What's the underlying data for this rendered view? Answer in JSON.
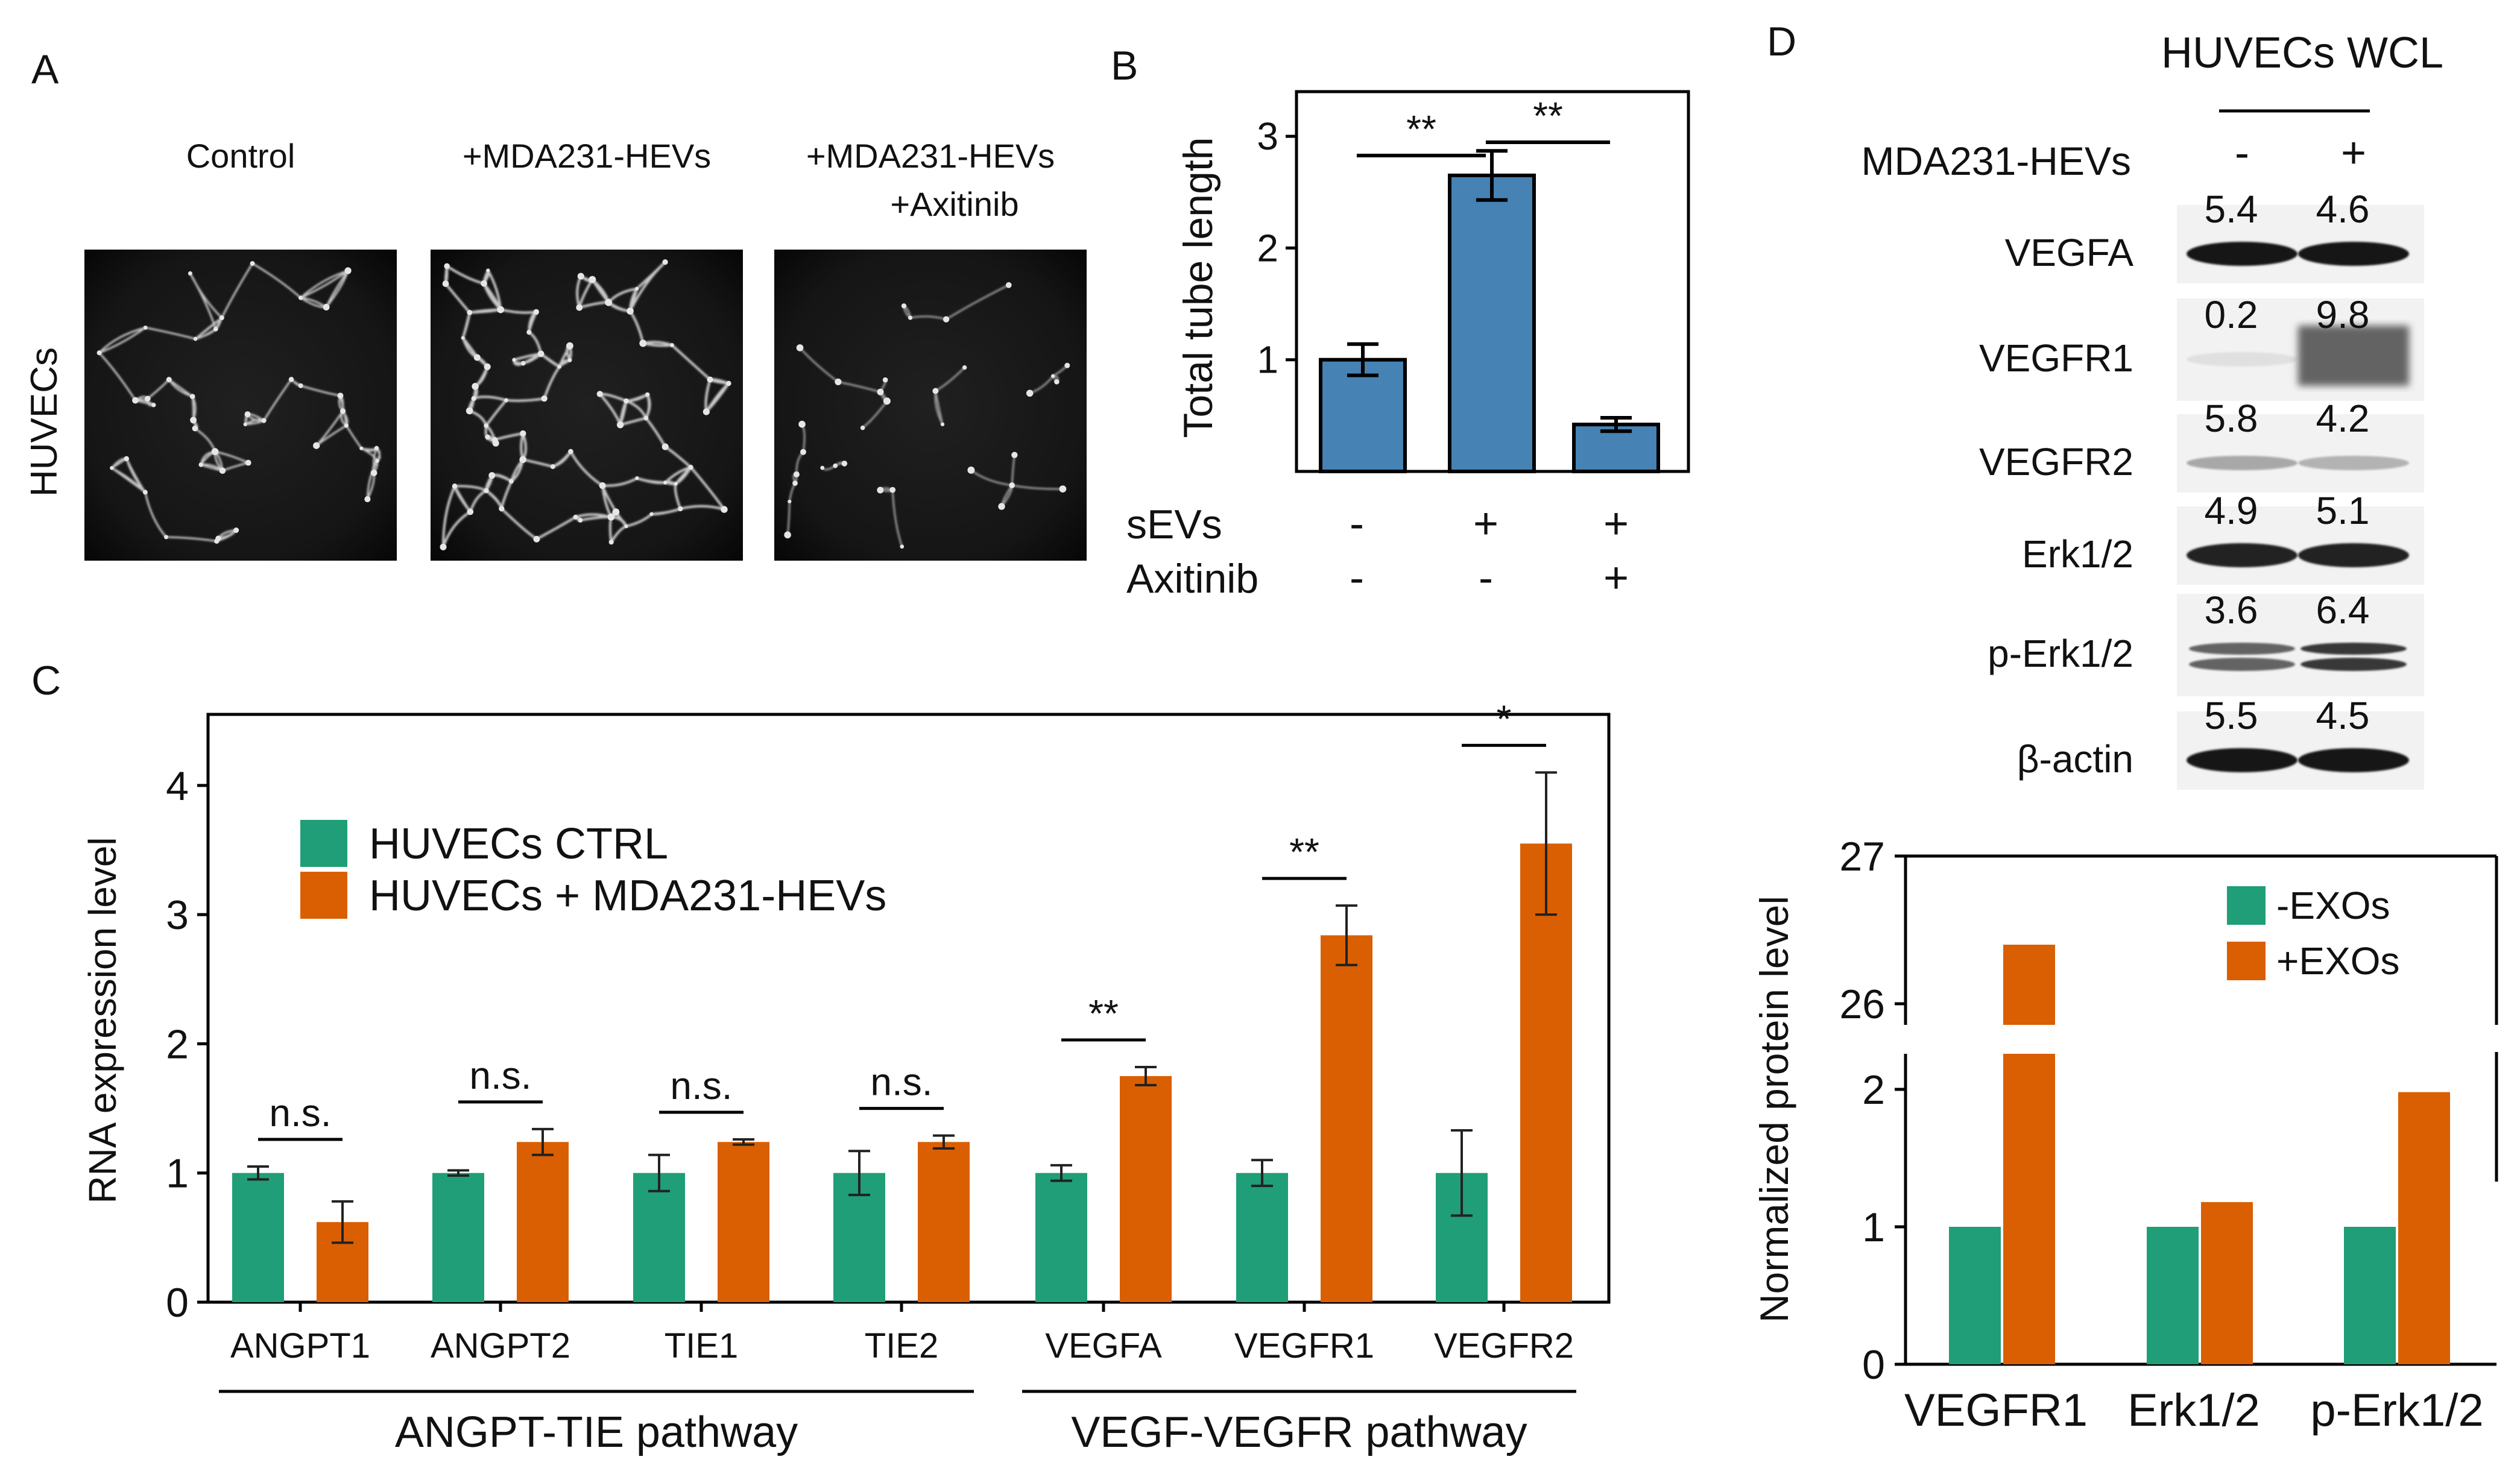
{
  "panel_letters": {
    "a": "A",
    "b": "B",
    "c": "C",
    "d": "D"
  },
  "panel_a": {
    "row_label": "HUVECs",
    "conditions": [
      "Control",
      "+MDA231-HEVs",
      "+MDA231-HEVs\n+Axitinib"
    ],
    "condition_lines": [
      [
        "Control"
      ],
      [
        "+MDA231-HEVs"
      ],
      [
        "+MDA231-HEVs",
        "+Axitinib"
      ]
    ]
  },
  "colors": {
    "blue": "#4682B4",
    "green": "#1F9E77",
    "orange": "#D95F02",
    "black": "#000000"
  },
  "chart_data": [
    {
      "id": "B",
      "type": "bar",
      "ylabel": "Total tube length",
      "ylim": [
        0,
        3.4
      ],
      "yticks": [
        1,
        2,
        3
      ],
      "values": [
        1.0,
        2.65,
        0.42
      ],
      "errors": [
        0.14,
        0.22,
        0.06
      ],
      "row_labels": [
        "sEVs",
        "Axitinib"
      ],
      "conditions": [
        [
          "-",
          "-"
        ],
        [
          "+",
          "-"
        ],
        [
          "+",
          "+"
        ]
      ],
      "significance": [
        {
          "from": 0,
          "to": 1,
          "label": "**"
        },
        {
          "from": 1,
          "to": 2,
          "label": "**"
        }
      ]
    },
    {
      "id": "C",
      "type": "bar",
      "ylabel": "RNA expression level",
      "ylim": [
        0,
        4.5
      ],
      "yticks": [
        0,
        1,
        2,
        3,
        4
      ],
      "categories": [
        "ANGPT1",
        "ANGPT2",
        "TIE1",
        "TIE2",
        "VEGFA",
        "VEGFR1",
        "VEGFR2"
      ],
      "series": [
        {
          "name": "HUVECs CTRL",
          "color": "#1F9E77",
          "values": [
            1.0,
            1.0,
            1.0,
            1.0,
            1.0,
            1.0,
            1.0
          ],
          "errors": [
            0.05,
            0.02,
            0.14,
            0.17,
            0.06,
            0.1,
            0.33
          ]
        },
        {
          "name": "HUVECs + MDA231-HEVs",
          "color": "#D95F02",
          "values": [
            0.62,
            1.24,
            1.24,
            1.24,
            1.75,
            2.84,
            3.55
          ],
          "errors": [
            0.16,
            0.1,
            0.02,
            0.05,
            0.07,
            0.23,
            0.55
          ]
        }
      ],
      "significance": [
        "n.s.",
        "n.s.",
        "n.s.",
        "n.s.",
        "**",
        "**",
        "*"
      ],
      "pathways": [
        {
          "label": "ANGPT-TIE pathway",
          "from": 0,
          "to": 3
        },
        {
          "label": "VEGF-VEGFR pathway",
          "from": 4,
          "to": 6
        }
      ],
      "legend": "top-left"
    },
    {
      "id": "D",
      "type": "bar",
      "ylabel": "Normalized protein level",
      "axis_break": true,
      "yticks_lower": [
        0,
        1,
        2
      ],
      "yticks_upper": [
        26,
        27
      ],
      "categories": [
        "VEGFR1",
        "Erk1/2",
        "p-Erk1/2"
      ],
      "series": [
        {
          "name": "-EXOs",
          "color": "#1F9E77",
          "values": [
            1.0,
            1.0,
            1.0
          ]
        },
        {
          "name": "+EXOs",
          "color": "#D95F02",
          "values": [
            26.4,
            1.18,
            1.98
          ]
        }
      ],
      "legend": "top-right"
    }
  ],
  "blot": {
    "title": "HUVECs WCL",
    "treatment_label": "MDA231-HEVs",
    "lanes": [
      "-",
      "+"
    ],
    "proteins": [
      {
        "name": "VEGFA",
        "values": [
          "5.4",
          "4.6"
        ],
        "intensity": [
          0.95,
          0.95
        ]
      },
      {
        "name": "VEGFR1",
        "values": [
          "0.2",
          "9.8"
        ],
        "intensity": [
          0.05,
          0.6
        ]
      },
      {
        "name": "VEGFR2",
        "values": [
          "5.8",
          "4.2"
        ],
        "intensity": [
          0.3,
          0.25
        ]
      },
      {
        "name": "Erk1/2",
        "values": [
          "4.9",
          "5.1"
        ],
        "intensity": [
          0.9,
          0.9
        ]
      },
      {
        "name": "p-Erk1/2",
        "values": [
          "3.6",
          "6.4"
        ],
        "intensity": [
          0.6,
          0.8
        ]
      },
      {
        "name": "β-actin",
        "values": [
          "5.5",
          "4.5"
        ],
        "intensity": [
          0.95,
          0.95
        ]
      }
    ]
  }
}
